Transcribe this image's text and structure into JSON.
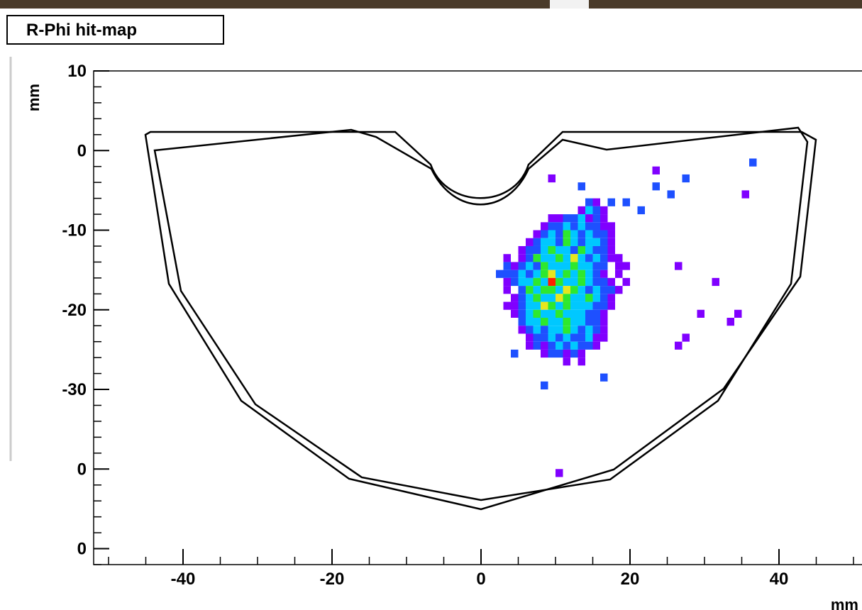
{
  "chart_data": {
    "type": "heatmap",
    "title": "R-Phi hit-map",
    "x_label": "mm",
    "y_label": "mm",
    "xlim": [
      -52,
      52
    ],
    "ylim": [
      -52,
      10
    ],
    "xticks": [
      -40,
      -20,
      0,
      20,
      40
    ],
    "yticks": [
      10,
      0,
      -10,
      -20,
      -30,
      {
        "value": -40,
        "label": "0"
      },
      {
        "value": -50,
        "label": "0"
      }
    ],
    "xminorstep": 5,
    "yminorstep": 2,
    "palette": [
      "#8000ff",
      "#1e50ff",
      "#00c8ff",
      "#2ee82e",
      "#e6e61e",
      "#ff1e00"
    ],
    "rows": [
      {
        "y": -7,
        "x0": 14,
        "z": [
          2,
          1,
          null,
          2
        ]
      },
      {
        "y": -8,
        "x0": 13,
        "z": [
          1,
          3,
          2,
          1
        ]
      },
      {
        "y": -9,
        "x0": 9,
        "z": [
          1,
          1,
          2,
          2,
          3,
          1,
          2,
          1
        ]
      },
      {
        "y": -10,
        "x0": 8,
        "z": [
          1,
          2,
          2,
          3,
          2,
          3,
          2,
          2,
          1,
          1
        ]
      },
      {
        "y": -11,
        "x0": 7,
        "z": [
          1,
          2,
          3,
          2,
          4,
          3,
          2,
          3,
          2,
          2,
          1
        ]
      },
      {
        "y": -12,
        "x0": 6,
        "z": [
          1,
          2,
          3,
          3,
          2,
          4,
          3,
          2,
          3,
          3,
          2,
          1
        ]
      },
      {
        "y": -13,
        "x0": 5,
        "z": [
          1,
          2,
          2,
          3,
          4,
          3,
          3,
          2,
          4,
          3,
          2,
          2,
          1
        ]
      },
      {
        "y": -14,
        "x0": 3,
        "z": [
          1,
          null,
          1,
          2,
          4,
          3,
          3,
          4,
          3,
          5,
          3,
          2,
          3,
          2,
          1,
          1
        ]
      },
      {
        "y": -15,
        "x0": 3,
        "z": [
          2,
          1,
          2,
          3,
          2,
          4,
          3,
          3,
          3,
          4,
          3,
          3,
          2,
          2,
          null,
          1,
          1
        ]
      },
      {
        "y": -16,
        "x0": 2,
        "z": [
          2,
          2,
          2,
          3,
          2,
          3,
          4,
          5,
          3,
          4,
          3,
          4,
          3,
          2,
          1,
          null,
          1
        ]
      },
      {
        "y": -17,
        "x0": 3,
        "z": [
          1,
          2,
          3,
          3,
          4,
          3,
          6,
          4,
          3,
          3,
          4,
          3,
          2,
          2,
          1,
          null,
          1
        ]
      },
      {
        "y": -18,
        "x0": 3,
        "z": [
          1,
          null,
          2,
          4,
          3,
          4,
          4,
          3,
          5,
          4,
          3,
          2,
          3,
          2,
          2,
          1
        ]
      },
      {
        "y": -19,
        "x0": 4,
        "z": [
          1,
          2,
          3,
          4,
          3,
          3,
          5,
          4,
          3,
          3,
          4,
          3,
          2,
          1
        ]
      },
      {
        "y": -20,
        "x0": 3,
        "z": [
          1,
          1,
          2,
          3,
          3,
          5,
          4,
          3,
          4,
          3,
          3,
          3,
          2,
          2,
          1
        ]
      },
      {
        "y": -21,
        "x0": 4,
        "z": [
          1,
          2,
          3,
          4,
          3,
          3,
          4,
          3,
          3,
          3,
          2,
          2,
          1
        ]
      },
      {
        "y": -22,
        "x0": 5,
        "z": [
          2,
          3,
          3,
          4,
          3,
          3,
          4,
          3,
          3,
          2,
          2,
          1
        ]
      },
      {
        "y": -23,
        "x0": 5,
        "z": [
          1,
          2,
          3,
          2,
          3,
          3,
          4,
          3,
          2,
          3,
          2,
          1
        ]
      },
      {
        "y": -24,
        "x0": 6,
        "z": [
          1,
          2,
          2,
          3,
          2,
          3,
          2,
          2,
          3,
          1,
          1
        ]
      },
      {
        "y": -25,
        "x0": 6,
        "z": [
          1,
          2,
          1,
          2,
          3,
          2,
          3,
          2,
          2,
          1
        ]
      },
      {
        "y": -26,
        "x0": 8,
        "z": [
          1,
          2,
          2,
          1,
          2,
          1
        ]
      },
      {
        "y": -27,
        "x0": 11,
        "z": [
          1,
          null,
          1
        ]
      },
      {
        "y": -4,
        "x0": 9,
        "z": [
          1
        ]
      },
      {
        "y": -5,
        "x0": 13,
        "z": [
          2
        ]
      },
      {
        "y": -7,
        "x0": 19,
        "z": [
          2
        ]
      },
      {
        "y": -8,
        "x0": 21,
        "z": [
          2
        ]
      },
      {
        "y": -3,
        "x0": 23,
        "z": [
          1
        ]
      },
      {
        "y": -5,
        "x0": 23,
        "z": [
          2
        ]
      },
      {
        "y": -6,
        "x0": 25,
        "z": [
          2
        ]
      },
      {
        "y": -4,
        "x0": 27,
        "z": [
          2
        ]
      },
      {
        "y": -2,
        "x0": 36,
        "z": [
          2
        ]
      },
      {
        "y": -6,
        "x0": 35,
        "z": [
          1
        ]
      },
      {
        "y": -15,
        "x0": 26,
        "z": [
          1
        ]
      },
      {
        "y": -17,
        "x0": 31,
        "z": [
          1
        ]
      },
      {
        "y": -21,
        "x0": 29,
        "z": [
          1
        ]
      },
      {
        "y": -21,
        "x0": 34,
        "z": [
          1
        ]
      },
      {
        "y": -22,
        "x0": 33,
        "z": [
          1
        ]
      },
      {
        "y": -24,
        "x0": 27,
        "z": [
          1
        ]
      },
      {
        "y": -25,
        "x0": 26,
        "z": [
          1
        ]
      },
      {
        "y": -26,
        "x0": 4,
        "z": [
          2
        ]
      },
      {
        "y": -30,
        "x0": 8,
        "z": [
          2
        ]
      },
      {
        "y": -29,
        "x0": 16,
        "z": [
          2
        ]
      },
      {
        "y": -41,
        "x0": 10,
        "z": [
          1
        ]
      }
    ]
  }
}
